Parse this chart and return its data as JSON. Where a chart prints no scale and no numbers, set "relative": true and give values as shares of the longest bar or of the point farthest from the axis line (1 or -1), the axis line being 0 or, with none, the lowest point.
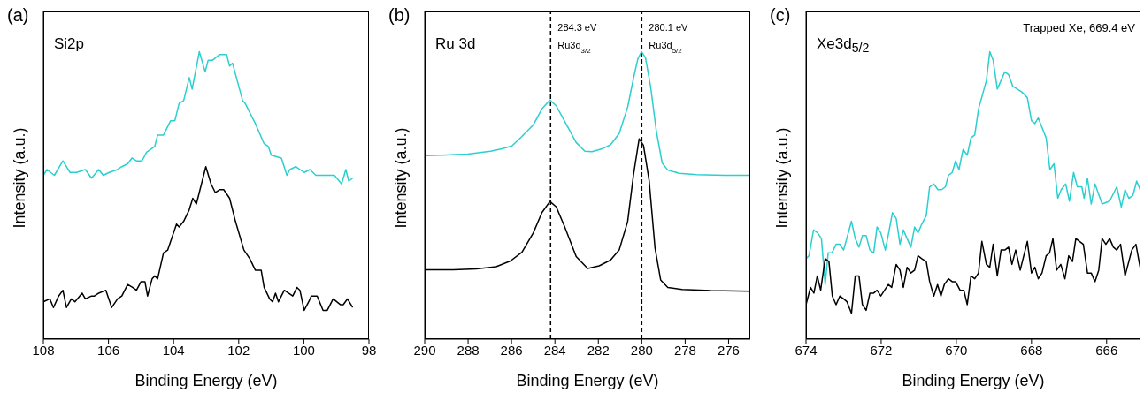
{
  "chart_data": [
    {
      "type": "line",
      "title": "(a)",
      "xlabel": "Binding Energy (eV)",
      "ylabel": "Intensity (a.u.)",
      "relative": true,
      "tick_labels": "x",
      "xlim": [
        108,
        98
      ],
      "xticks": [
        108,
        106,
        104,
        102,
        100,
        98
      ],
      "annotations": [
        "Si2p"
      ],
      "series": [
        {
          "color": "#2ccfcf",
          "x": [
            108.0,
            107.89,
            107.66,
            107.4,
            107.18,
            106.98,
            106.71,
            106.52,
            106.3,
            106.16,
            105.98,
            105.72,
            105.59,
            105.41,
            105.28,
            105.14,
            104.97,
            104.83,
            104.58,
            104.49,
            104.31,
            104.09,
            103.96,
            103.83,
            103.69,
            103.52,
            103.43,
            103.21,
            103.03,
            102.94,
            102.81,
            102.59,
            102.37,
            102.28,
            102.19,
            101.88,
            101.8,
            101.49,
            101.22,
            101.09,
            101.0,
            100.69,
            100.52,
            100.43,
            100.25,
            99.99,
            99.81,
            99.63,
            99.28,
            99.06,
            98.84,
            98.71,
            98.62,
            98.5
          ],
          "values": [
            0.57,
            0.59,
            0.57,
            0.62,
            0.58,
            0.58,
            0.59,
            0.56,
            0.59,
            0.57,
            0.58,
            0.59,
            0.6,
            0.61,
            0.63,
            0.62,
            0.62,
            0.65,
            0.67,
            0.71,
            0.71,
            0.76,
            0.76,
            0.82,
            0.83,
            0.91,
            0.87,
            1.0,
            0.93,
            0.97,
            0.97,
            0.99,
            0.99,
            0.95,
            0.96,
            0.83,
            0.82,
            0.75,
            0.68,
            0.67,
            0.64,
            0.63,
            0.57,
            0.59,
            0.6,
            0.58,
            0.59,
            0.57,
            0.57,
            0.57,
            0.54,
            0.59,
            0.55,
            0.56
          ]
        },
        {
          "color": "#000000",
          "x": [
            108.0,
            107.8,
            107.69,
            107.53,
            107.4,
            107.29,
            107.14,
            107.03,
            106.81,
            106.71,
            106.52,
            106.43,
            106.3,
            106.08,
            105.9,
            105.72,
            105.59,
            105.41,
            105.26,
            105.14,
            105.0,
            104.88,
            104.8,
            104.66,
            104.58,
            104.49,
            104.31,
            104.18,
            103.91,
            103.83,
            103.69,
            103.52,
            103.41,
            103.3,
            103.01,
            102.85,
            102.72,
            102.59,
            102.46,
            102.28,
            102.1,
            101.84,
            101.66,
            101.49,
            101.31,
            101.22,
            101.05,
            100.96,
            100.87,
            100.78,
            100.6,
            100.34,
            100.21,
            100.12,
            99.99,
            99.85,
            99.77,
            99.59,
            99.41,
            99.28,
            99.1,
            98.88,
            98.79,
            98.66,
            98.5
          ],
          "values": [
            0.13,
            0.14,
            0.11,
            0.15,
            0.17,
            0.11,
            0.14,
            0.13,
            0.16,
            0.14,
            0.15,
            0.15,
            0.16,
            0.17,
            0.11,
            0.14,
            0.15,
            0.19,
            0.18,
            0.17,
            0.2,
            0.2,
            0.15,
            0.21,
            0.22,
            0.21,
            0.3,
            0.31,
            0.4,
            0.39,
            0.41,
            0.45,
            0.49,
            0.47,
            0.6,
            0.54,
            0.51,
            0.52,
            0.52,
            0.49,
            0.41,
            0.31,
            0.28,
            0.24,
            0.24,
            0.18,
            0.14,
            0.13,
            0.16,
            0.13,
            0.17,
            0.15,
            0.18,
            0.17,
            0.1,
            0.13,
            0.15,
            0.15,
            0.1,
            0.1,
            0.14,
            0.12,
            0.12,
            0.14,
            0.11
          ]
        }
      ]
    },
    {
      "type": "line",
      "title": "(b)",
      "xlabel": "Binding Energy (eV)",
      "ylabel": "Intensity (a.u.)",
      "relative": true,
      "tick_labels": "x",
      "xlim": [
        290,
        275
      ],
      "xticks": [
        290,
        288,
        286,
        284,
        282,
        280,
        278,
        276
      ],
      "annotations": [
        "Ru 3d"
      ],
      "ref_lines": [
        {
          "axis": "x",
          "value": 284.2,
          "label": "284.3 eV\nRu3d$_{3/2}$",
          "color": "#000000",
          "line_style": "dashed"
        },
        {
          "axis": "x",
          "value": 280.0,
          "label": "280.1 eV\nRu3d$_{5/2}$",
          "color": "#000000",
          "line_style": "dashed"
        }
      ],
      "series": [
        {
          "color": "#2ccfcf",
          "x": [
            289.93,
            288.95,
            288.02,
            286.97,
            286.44,
            285.98,
            285.52,
            285.0,
            284.6,
            284.23,
            283.94,
            283.54,
            283.02,
            282.62,
            282.29,
            281.83,
            281.44,
            281.04,
            280.65,
            280.38,
            280.18,
            280.01,
            279.83,
            279.59,
            279.33,
            279.06,
            278.8,
            278.27,
            277.48,
            276.17,
            275.0
          ],
          "values": [
            0.638,
            0.641,
            0.644,
            0.654,
            0.662,
            0.672,
            0.705,
            0.745,
            0.801,
            0.832,
            0.812,
            0.756,
            0.684,
            0.654,
            0.652,
            0.662,
            0.676,
            0.715,
            0.807,
            0.908,
            0.975,
            1.0,
            0.98,
            0.878,
            0.725,
            0.613,
            0.588,
            0.577,
            0.572,
            0.57,
            0.57
          ]
        },
        {
          "color": "#000000",
          "x": [
            290.0,
            288.68,
            287.63,
            286.71,
            286.05,
            285.52,
            285.0,
            284.6,
            284.23,
            283.94,
            283.54,
            283.02,
            282.49,
            281.96,
            281.44,
            281.04,
            280.65,
            280.38,
            280.12,
            279.92,
            279.66,
            279.39,
            279.13,
            278.8,
            278.14,
            276.82,
            275.0
          ],
          "values": [
            0.241,
            0.241,
            0.244,
            0.252,
            0.272,
            0.302,
            0.369,
            0.44,
            0.479,
            0.46,
            0.389,
            0.287,
            0.246,
            0.255,
            0.275,
            0.31,
            0.409,
            0.572,
            0.697,
            0.674,
            0.552,
            0.318,
            0.206,
            0.18,
            0.173,
            0.169,
            0.167
          ]
        }
      ]
    },
    {
      "type": "line",
      "title": "(c)",
      "xlabel": "Binding Energy (eV)",
      "ylabel": "Intensity (a.u.)",
      "relative": true,
      "tick_labels": "x",
      "xlim": [
        674,
        665.1
      ],
      "xticks": [
        674,
        672,
        670,
        668,
        666
      ],
      "annotations": [
        "Xe3d$_{5/2}$",
        "Trapped Xe, 669.4 eV"
      ],
      "series": [
        {
          "color": "#2ccfcf",
          "x": [
            674.0,
            673.92,
            673.8,
            673.69,
            673.59,
            673.49,
            673.41,
            673.31,
            673.2,
            673.1,
            673.0,
            672.79,
            672.69,
            672.59,
            672.5,
            672.4,
            672.3,
            672.2,
            672.11,
            672.01,
            671.89,
            671.8,
            671.7,
            671.6,
            671.5,
            671.41,
            671.31,
            671.21,
            671.11,
            671.02,
            670.92,
            670.8,
            670.71,
            670.6,
            670.49,
            670.39,
            670.29,
            670.21,
            670.11,
            670.02,
            669.93,
            669.82,
            669.71,
            669.61,
            669.51,
            669.41,
            669.2,
            669.11,
            669.02,
            668.91,
            668.81,
            668.71,
            668.61,
            668.5,
            668.38,
            668.26,
            668.11,
            668.0,
            667.91,
            667.82,
            667.61,
            667.51,
            667.4,
            667.3,
            667.21,
            667.09,
            666.99,
            666.88,
            666.78,
            666.66,
            666.6,
            666.51,
            666.41,
            666.31,
            666.12,
            665.92,
            665.73,
            665.61,
            665.51,
            665.41,
            665.3,
            665.2,
            665.11
          ],
          "values": [
            0.28,
            0.29,
            0.38,
            0.37,
            0.35,
            0.19,
            0.3,
            0.3,
            0.33,
            0.33,
            0.31,
            0.41,
            0.35,
            0.32,
            0.36,
            0.36,
            0.31,
            0.3,
            0.39,
            0.37,
            0.31,
            0.37,
            0.44,
            0.42,
            0.33,
            0.38,
            0.35,
            0.32,
            0.39,
            0.37,
            0.4,
            0.43,
            0.53,
            0.54,
            0.52,
            0.52,
            0.53,
            0.57,
            0.58,
            0.62,
            0.59,
            0.66,
            0.64,
            0.7,
            0.71,
            0.8,
            0.9,
            1.0,
            0.97,
            0.87,
            0.9,
            0.93,
            0.92,
            0.88,
            0.87,
            0.86,
            0.84,
            0.76,
            0.75,
            0.77,
            0.7,
            0.59,
            0.61,
            0.49,
            0.52,
            0.54,
            0.48,
            0.58,
            0.53,
            0.53,
            0.49,
            0.56,
            0.47,
            0.54,
            0.47,
            0.48,
            0.53,
            0.46,
            0.52,
            0.49,
            0.5,
            0.55,
            0.52
          ]
        },
        {
          "color": "#000000",
          "x": [
            674.0,
            673.88,
            673.79,
            673.7,
            673.61,
            673.49,
            673.39,
            673.3,
            673.2,
            673.1,
            673.0,
            672.91,
            672.79,
            672.69,
            672.59,
            672.5,
            672.4,
            672.3,
            672.2,
            672.11,
            672.01,
            671.91,
            671.81,
            671.72,
            671.6,
            671.5,
            671.41,
            671.31,
            671.21,
            671.11,
            671.02,
            670.92,
            670.8,
            670.71,
            670.6,
            670.5,
            670.41,
            670.32,
            670.21,
            670.11,
            670.02,
            669.9,
            669.8,
            669.71,
            669.61,
            669.51,
            669.41,
            669.32,
            669.2,
            669.11,
            669.02,
            668.91,
            668.81,
            668.71,
            668.61,
            668.52,
            668.42,
            668.3,
            668.11,
            668.0,
            667.91,
            667.82,
            667.72,
            667.61,
            667.52,
            667.43,
            667.33,
            667.22,
            667.11,
            667.01,
            666.91,
            666.82,
            666.62,
            666.51,
            666.41,
            666.31,
            666.21,
            666.12,
            666.02,
            665.92,
            665.82,
            665.73,
            665.63,
            665.51,
            665.33,
            665.22,
            665.11
          ],
          "values": [
            0.12,
            0.18,
            0.16,
            0.22,
            0.17,
            0.28,
            0.27,
            0.15,
            0.12,
            0.15,
            0.14,
            0.13,
            0.09,
            0.22,
            0.22,
            0.12,
            0.1,
            0.16,
            0.16,
            0.17,
            0.15,
            0.17,
            0.19,
            0.18,
            0.26,
            0.24,
            0.18,
            0.25,
            0.23,
            0.24,
            0.29,
            0.28,
            0.27,
            0.2,
            0.15,
            0.19,
            0.15,
            0.19,
            0.21,
            0.2,
            0.2,
            0.17,
            0.17,
            0.12,
            0.22,
            0.21,
            0.23,
            0.34,
            0.26,
            0.25,
            0.33,
            0.22,
            0.31,
            0.31,
            0.32,
            0.26,
            0.31,
            0.24,
            0.34,
            0.23,
            0.25,
            0.21,
            0.23,
            0.29,
            0.3,
            0.35,
            0.24,
            0.26,
            0.21,
            0.29,
            0.27,
            0.35,
            0.33,
            0.23,
            0.23,
            0.2,
            0.24,
            0.35,
            0.33,
            0.35,
            0.32,
            0.31,
            0.33,
            0.22,
            0.31,
            0.33,
            0.25
          ]
        }
      ]
    }
  ]
}
